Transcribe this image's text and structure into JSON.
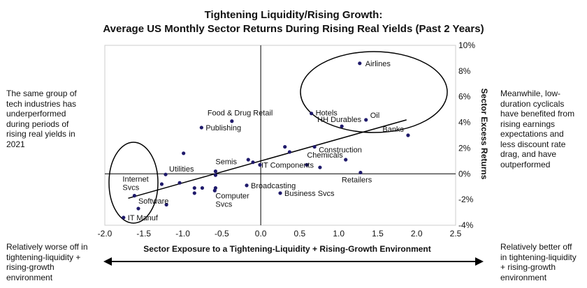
{
  "title": {
    "line1": "Tightening Liquidity/Rising Growth:",
    "line2": "Average US Monthly Sector Returns During Rising Real Yields (Past 2 Years)"
  },
  "notes": {
    "left": "The same group of tech industries has underperformed during periods of rising real yields in 2021",
    "right": "Meanwhile, low-duration cyclicals have benefited from rising earnings expectations and less discount rate drag, and have outperformed",
    "bottom_left": "Relatively worse off in tightening-liquidity + rising-growth environment",
    "bottom_right": "Relatively better off in tightening-liquidity + rising-growth environment"
  },
  "colors": {
    "point": "#1f1a6b",
    "axis": "#000000",
    "frame": "#cccccc"
  },
  "chart_data": {
    "type": "scatter",
    "title": "Tightening Liquidity/Rising Growth: Average US Monthly Sector Returns During Rising Real Yields (Past 2 Years)",
    "xlabel": "Sector Exposure to a Tightening-Liquidity + Rising-Growth Environment",
    "ylabel": "Sector Excess Returns",
    "xlim": [
      -2.0,
      2.5
    ],
    "ylim": [
      -4,
      10
    ],
    "xticks": [
      "-2.0",
      "-1.5",
      "-1.0",
      "-0.5",
      "0.0",
      "0.5",
      "1.0",
      "1.5",
      "2.0",
      "2.5"
    ],
    "yticks": [
      "-4%",
      "-2%",
      "0%",
      "2%",
      "4%",
      "6%",
      "8%",
      "10%"
    ],
    "trendline": {
      "x1": -1.7,
      "y1": -1.9,
      "x2": 1.87,
      "y2": 4.2
    },
    "labeled_points": [
      {
        "label": "Airlines",
        "x": 1.27,
        "y": 8.6
      },
      {
        "label": "Hotels",
        "x": 0.65,
        "y": 4.7
      },
      {
        "label": "HH Durables",
        "x": 1.04,
        "y": 3.7
      },
      {
        "label": "Oil",
        "x": 1.35,
        "y": 4.2
      },
      {
        "label": "Banks",
        "x": 1.89,
        "y": 3.0
      },
      {
        "label": "Food & Drug Retail",
        "x": -0.37,
        "y": 4.1
      },
      {
        "label": "Publishing",
        "x": -0.76,
        "y": 3.6
      },
      {
        "label": "Construction",
        "x": 0.69,
        "y": 2.1
      },
      {
        "label": "Chemicals",
        "x": 1.09,
        "y": 1.1
      },
      {
        "label": "Semis",
        "x": -0.58,
        "y": 0.2
      },
      {
        "label": "IT Components",
        "x": -0.01,
        "y": 0.7
      },
      {
        "label": "Utilities",
        "x": -1.22,
        "y": -0.05
      },
      {
        "label": "Retailers",
        "x": 1.28,
        "y": 0.1
      },
      {
        "label": "Broadcasting",
        "x": -0.18,
        "y": -0.9
      },
      {
        "label": "Business Svcs",
        "x": 0.25,
        "y": -1.5
      },
      {
        "label": "Computer Svcs",
        "x": -0.58,
        "y": -1.1
      },
      {
        "label": "Internet Svcs",
        "x": -1.62,
        "y": -1.7
      },
      {
        "label": "Software",
        "x": -1.57,
        "y": -2.7
      },
      {
        "label": "IT Manuf",
        "x": -1.76,
        "y": -3.4
      }
    ],
    "unlabeled_points": [
      {
        "x": -0.99,
        "y": 1.6
      },
      {
        "x": 0.31,
        "y": 2.1
      },
      {
        "x": 0.37,
        "y": 1.7
      },
      {
        "x": 0.76,
        "y": 0.5
      },
      {
        "x": 0.59,
        "y": 0.7
      },
      {
        "x": -0.16,
        "y": 1.1
      },
      {
        "x": -0.1,
        "y": 0.9
      },
      {
        "x": -0.58,
        "y": -0.1
      },
      {
        "x": -1.27,
        "y": -0.8
      },
      {
        "x": -1.04,
        "y": -0.7
      },
      {
        "x": -0.85,
        "y": -1.1
      },
      {
        "x": -0.85,
        "y": -1.5
      },
      {
        "x": -0.75,
        "y": -1.1
      },
      {
        "x": -0.59,
        "y": -1.3
      },
      {
        "x": -1.21,
        "y": -2.4
      }
    ]
  }
}
